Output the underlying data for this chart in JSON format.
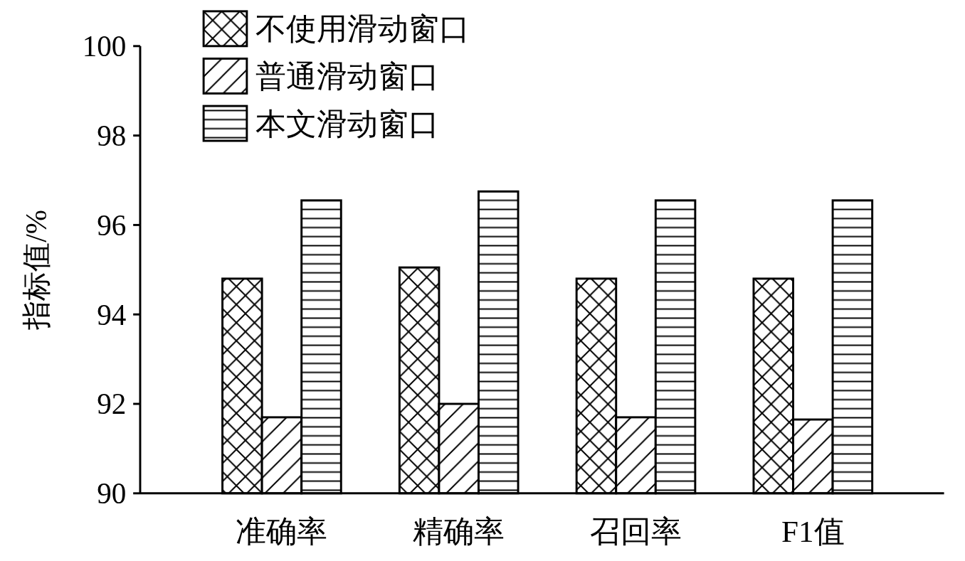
{
  "chart_data": {
    "type": "bar",
    "ylabel": "指标值/%",
    "categories": [
      "准确率",
      "精确率",
      "召回率",
      "F1值"
    ],
    "series": [
      {
        "name": "不使用滑动窗口",
        "color": "#000000",
        "values": [
          94.8,
          95.05,
          94.8,
          94.8
        ]
      },
      {
        "name": "普通滑动窗口",
        "color": "#000000",
        "values": [
          91.7,
          92.0,
          91.7,
          91.65
        ]
      },
      {
        "name": "本文滑动窗口",
        "color": "#000000",
        "values": [
          96.55,
          96.75,
          96.55,
          96.55
        ]
      }
    ],
    "ylim": [
      90,
      100
    ],
    "yticks": [
      90,
      92,
      94,
      96,
      98,
      100
    ],
    "grid": false,
    "legend": "top left"
  }
}
